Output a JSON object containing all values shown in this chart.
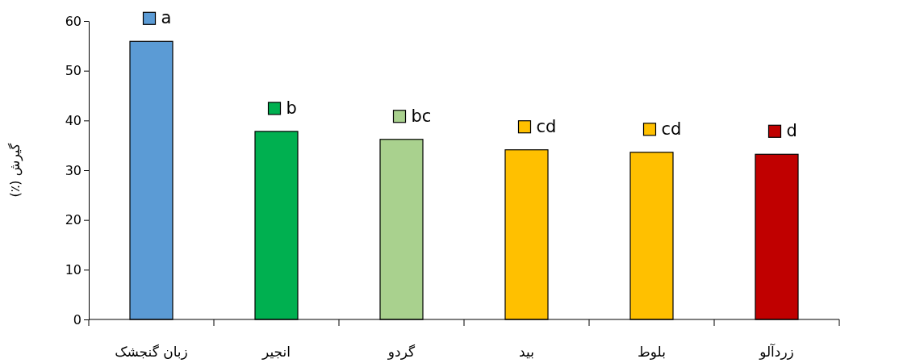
{
  "chart_data": {
    "type": "bar",
    "ylabel": "گیرش (٪)",
    "categories": [
      "زبان گنجشک",
      "انجیر",
      "گردو",
      "بید",
      "بلوط",
      "زردآلو"
    ],
    "values": [
      55.9,
      37.8,
      36.2,
      34.1,
      33.6,
      33.2
    ],
    "colors": [
      "#5b9bd5",
      "#00b050",
      "#a9d18e",
      "#ffc000",
      "#ffc000",
      "#c00000"
    ],
    "ylim": [
      0,
      60
    ],
    "yticks": [
      0,
      10,
      20,
      30,
      40,
      50,
      60
    ],
    "grid": false,
    "annotations": [
      {
        "text": "a",
        "x": "زبان گنجشک",
        "y": 55.9
      },
      {
        "text": "b",
        "x": "انجیر",
        "y": 37.8
      },
      {
        "text": "bc",
        "x": "گردو",
        "y": 36.2
      },
      {
        "text": "cd",
        "x": "بید",
        "y": 34.1
      },
      {
        "text": "cd",
        "x": "بلوط",
        "y": 33.6
      },
      {
        "text": "d",
        "x": "زردآلو",
        "y": 33.2
      }
    ]
  }
}
